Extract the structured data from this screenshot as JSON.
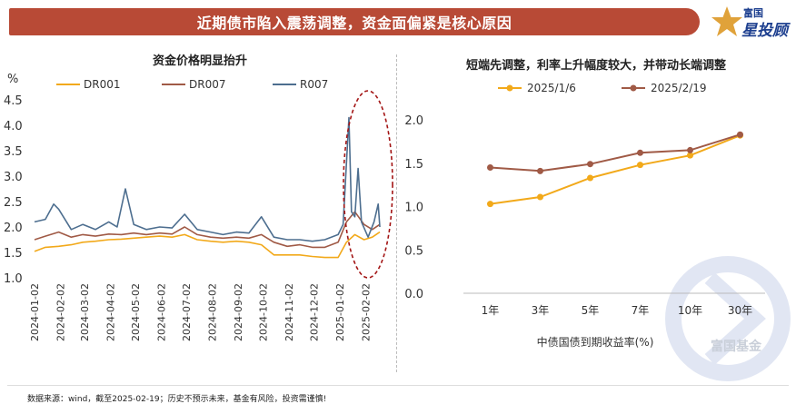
{
  "header": {
    "title": "近期债市陷入震荡调整，资金面偏紧是核心原因",
    "brand_top": "富国",
    "brand_main": "星投顾"
  },
  "watermark": {
    "text": "富国基金"
  },
  "footer": {
    "note": "数据来源：wind，截至2025-02-19；历史不预示未来，基金有风险，投资需谨慎!"
  },
  "colors": {
    "banner": "#b84a36",
    "dr001": "#f2a91a",
    "dr007": "#a05a46",
    "r007": "#4d6e8f",
    "highlight": "#a31515"
  },
  "chart_data": [
    {
      "type": "line",
      "title": "资金价格明显抬升",
      "ylabel": "%",
      "ylim": [
        1.0,
        4.5
      ],
      "yticks": [
        "1.0",
        "1.5",
        "2.0",
        "2.5",
        "3.0",
        "3.5",
        "4.0",
        "4.5"
      ],
      "x_range": [
        "2024-01-02",
        "2025-02-19"
      ],
      "x_ticks": [
        "2024-01-02",
        "2024-02-02",
        "2024-03-02",
        "2024-04-02",
        "2024-05-02",
        "2024-06-02",
        "2024-07-02",
        "2024-08-02",
        "2024-09-02",
        "2024-10-02",
        "2024-11-02",
        "2024-12-02",
        "2025-01-02",
        "2025-02-02"
      ],
      "legend_position": "top",
      "grid": false,
      "highlight": {
        "shape": "dashed ellipse",
        "target": "2025-01 to 2025-02"
      },
      "series": [
        {
          "name": "DR001",
          "points": [
            [
              "2024-01-02",
              1.52
            ],
            [
              "2024-01-15",
              1.6
            ],
            [
              "2024-01-31",
              1.62
            ],
            [
              "2024-02-15",
              1.65
            ],
            [
              "2024-02-29",
              1.7
            ],
            [
              "2024-03-15",
              1.72
            ],
            [
              "2024-03-31",
              1.75
            ],
            [
              "2024-04-15",
              1.76
            ],
            [
              "2024-04-30",
              1.78
            ],
            [
              "2024-05-15",
              1.8
            ],
            [
              "2024-05-31",
              1.82
            ],
            [
              "2024-06-15",
              1.8
            ],
            [
              "2024-06-30",
              1.85
            ],
            [
              "2024-07-15",
              1.75
            ],
            [
              "2024-07-31",
              1.72
            ],
            [
              "2024-08-15",
              1.7
            ],
            [
              "2024-08-31",
              1.72
            ],
            [
              "2024-09-15",
              1.7
            ],
            [
              "2024-09-30",
              1.65
            ],
            [
              "2024-10-15",
              1.45
            ],
            [
              "2024-10-31",
              1.45
            ],
            [
              "2024-11-15",
              1.45
            ],
            [
              "2024-11-30",
              1.42
            ],
            [
              "2024-12-15",
              1.4
            ],
            [
              "2024-12-31",
              1.4
            ],
            [
              "2025-01-10",
              1.7
            ],
            [
              "2025-01-20",
              1.85
            ],
            [
              "2025-01-31",
              1.75
            ],
            [
              "2025-02-10",
              1.8
            ],
            [
              "2025-02-19",
              1.9
            ]
          ]
        },
        {
          "name": "DR007",
          "points": [
            [
              "2024-01-02",
              1.75
            ],
            [
              "2024-01-15",
              1.82
            ],
            [
              "2024-01-31",
              1.9
            ],
            [
              "2024-02-15",
              1.8
            ],
            [
              "2024-02-29",
              1.85
            ],
            [
              "2024-03-15",
              1.82
            ],
            [
              "2024-03-31",
              1.86
            ],
            [
              "2024-04-15",
              1.85
            ],
            [
              "2024-04-30",
              1.88
            ],
            [
              "2024-05-15",
              1.85
            ],
            [
              "2024-05-31",
              1.88
            ],
            [
              "2024-06-15",
              1.86
            ],
            [
              "2024-06-30",
              2.0
            ],
            [
              "2024-07-15",
              1.85
            ],
            [
              "2024-07-31",
              1.8
            ],
            [
              "2024-08-15",
              1.78
            ],
            [
              "2024-08-31",
              1.8
            ],
            [
              "2024-09-15",
              1.78
            ],
            [
              "2024-09-30",
              1.85
            ],
            [
              "2024-10-15",
              1.7
            ],
            [
              "2024-10-31",
              1.62
            ],
            [
              "2024-11-15",
              1.65
            ],
            [
              "2024-11-30",
              1.6
            ],
            [
              "2024-12-15",
              1.6
            ],
            [
              "2024-12-31",
              1.7
            ],
            [
              "2025-01-10",
              2.1
            ],
            [
              "2025-01-20",
              2.3
            ],
            [
              "2025-01-31",
              2.05
            ],
            [
              "2025-02-10",
              1.95
            ],
            [
              "2025-02-19",
              2.05
            ]
          ]
        },
        {
          "name": "R007",
          "points": [
            [
              "2024-01-02",
              2.1
            ],
            [
              "2024-01-15",
              2.15
            ],
            [
              "2024-01-25",
              2.45
            ],
            [
              "2024-01-31",
              2.35
            ],
            [
              "2024-02-15",
              1.95
            ],
            [
              "2024-02-29",
              2.05
            ],
            [
              "2024-03-15",
              1.95
            ],
            [
              "2024-03-31",
              2.1
            ],
            [
              "2024-04-10",
              2.0
            ],
            [
              "2024-04-20",
              2.75
            ],
            [
              "2024-04-30",
              2.05
            ],
            [
              "2024-05-15",
              1.95
            ],
            [
              "2024-05-31",
              2.0
            ],
            [
              "2024-06-15",
              1.98
            ],
            [
              "2024-06-30",
              2.25
            ],
            [
              "2024-07-15",
              1.95
            ],
            [
              "2024-07-31",
              1.9
            ],
            [
              "2024-08-15",
              1.85
            ],
            [
              "2024-08-31",
              1.9
            ],
            [
              "2024-09-15",
              1.88
            ],
            [
              "2024-09-30",
              2.2
            ],
            [
              "2024-10-15",
              1.8
            ],
            [
              "2024-10-31",
              1.75
            ],
            [
              "2024-11-15",
              1.75
            ],
            [
              "2024-11-30",
              1.72
            ],
            [
              "2024-12-15",
              1.75
            ],
            [
              "2024-12-31",
              1.85
            ],
            [
              "2025-01-06",
              2.05
            ],
            [
              "2025-01-13",
              4.15
            ],
            [
              "2025-01-16",
              2.3
            ],
            [
              "2025-01-20",
              2.2
            ],
            [
              "2025-01-24",
              3.15
            ],
            [
              "2025-01-28",
              2.1
            ],
            [
              "2025-02-05",
              1.8
            ],
            [
              "2025-02-12",
              2.1
            ],
            [
              "2025-02-17",
              2.45
            ],
            [
              "2025-02-19",
              2.0
            ]
          ]
        }
      ]
    },
    {
      "type": "line",
      "title": "短端先调整，利率上升幅度较大，并带动长端调整",
      "xlabel": "中债国债到期收益率(%)",
      "ylabel": "",
      "ylim": [
        0.0,
        2.0
      ],
      "yticks": [
        "0.0",
        "0.5",
        "1.0",
        "1.5",
        "2.0"
      ],
      "categories": [
        "1年",
        "3年",
        "5年",
        "7年",
        "10年",
        "30年"
      ],
      "legend_position": "top",
      "grid": false,
      "series": [
        {
          "name": "2025/1/6",
          "values": [
            1.03,
            1.11,
            1.33,
            1.48,
            1.59,
            1.82
          ]
        },
        {
          "name": "2025/2/19",
          "values": [
            1.45,
            1.41,
            1.49,
            1.62,
            1.65,
            1.83
          ]
        }
      ]
    }
  ]
}
